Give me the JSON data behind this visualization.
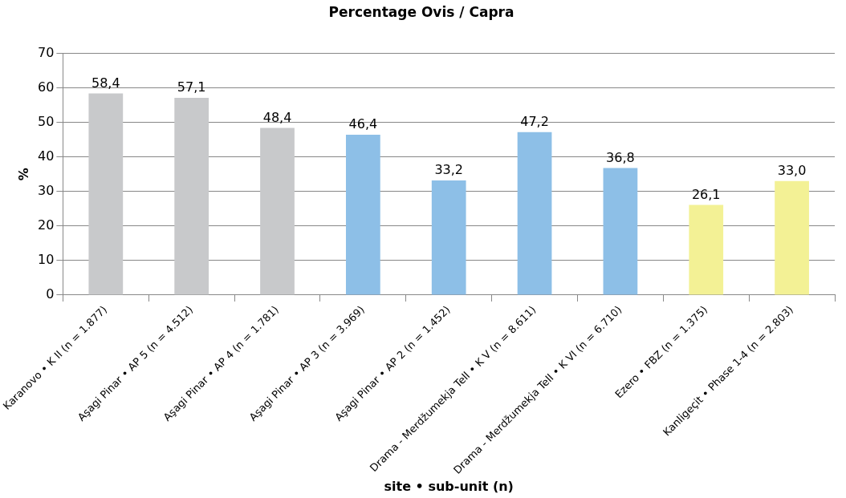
{
  "chart_data": {
    "type": "bar",
    "title": "Percentage Ovis / Capra",
    "xlabel": "site • sub-unit (n)",
    "ylabel": "%",
    "categories": [
      "Karanovo • K II (n = 1.877)",
      "Aşagi Pinar • AP 5 (n = 4.512)",
      "Aşagi Pinar • AP 4 (n = 1.781)",
      "Aşagi Pinar • AP 3 (n = 3.969)",
      "Aşagi Pinar • AP 2 (n = 1.452)",
      "Drama - Merdžumekja Tell • K V (n = 8.611)",
      "Drama - Merdžumekja Tell • K VI (n = 6.710)",
      "Ezero • FBZ (n = 1.375)",
      "Kanligeçit • Phase 1-4 (n = 2.803)"
    ],
    "values": [
      58.4,
      57.1,
      48.4,
      46.4,
      33.2,
      47.2,
      36.8,
      26.1,
      33.0
    ],
    "colors": [
      "#c8c9cb",
      "#c8c9cb",
      "#c8c9cb",
      "#8dbfe7",
      "#8dbfe7",
      "#8dbfe7",
      "#8dbfe7",
      "#f3f195",
      "#f3f195"
    ],
    "value_labels": [
      "58,4",
      "57,1",
      "48,4",
      "46,4",
      "33,2",
      "47,2",
      "36,8",
      "26,1",
      "33,0"
    ],
    "ylim": [
      0,
      70
    ],
    "yticks": [
      0,
      10,
      20,
      30,
      40,
      50,
      60,
      70
    ],
    "grid": "y",
    "legend": false
  }
}
